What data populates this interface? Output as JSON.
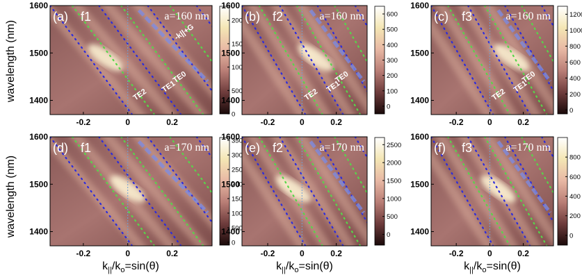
{
  "figure": {
    "ylabel": "wavelength (nm)",
    "xlabel": "k||/ko=sin(θ)",
    "xlabel_parts": {
      "k": "k",
      "sub1": "||",
      "slash": "/k",
      "sub2": "o",
      "rest": "=sin(θ)"
    }
  },
  "chart_data": [
    {
      "type": "heatmap",
      "panel": "(a)",
      "facet": "f1",
      "lattice": "a=160 nm",
      "xlim": [
        -0.35,
        0.38
      ],
      "ylim": [
        1370,
        1600
      ],
      "xticks": [
        "-0.2",
        "0",
        "0.2"
      ],
      "xtick_values": [
        -0.2,
        0,
        0.2
      ],
      "yticks": [
        "1600",
        "1500",
        "1400"
      ],
      "ytick_values": [
        1600,
        1500,
        1400
      ],
      "colorbar": {
        "range": [
          0,
          2300
        ],
        "ticks": [
          "2000",
          "1500",
          "1000",
          "500",
          "0"
        ],
        "tick_values": [
          2000,
          1500,
          1000,
          500,
          0
        ]
      },
      "mode_labels": [
        "TE0",
        "TE1",
        "TE2",
        "-k||+G"
      ],
      "peak_x": -0.1
    },
    {
      "type": "heatmap",
      "panel": "(b)",
      "facet": "f2",
      "lattice": "a=160 nm",
      "xlim": [
        -0.35,
        0.38
      ],
      "ylim": [
        1370,
        1600
      ],
      "xticks": [
        "-0.2",
        "0",
        "0.2"
      ],
      "xtick_values": [
        -0.2,
        0,
        0.2
      ],
      "yticks": [
        "1600",
        "1500",
        "1400"
      ],
      "ytick_values": [
        1600,
        1500,
        1400
      ],
      "colorbar": {
        "range": [
          -50,
          650
        ],
        "ticks": [
          "600",
          "500",
          "400",
          "300",
          "200",
          "100",
          "0"
        ],
        "tick_values": [
          600,
          500,
          400,
          300,
          200,
          100,
          0
        ]
      },
      "mode_labels": [
        "TE0",
        "TE1",
        "TE2"
      ],
      "peak_x": 0.08
    },
    {
      "type": "heatmap",
      "panel": "(c)",
      "facet": "f3",
      "lattice": "a=160 nm",
      "xlim": [
        -0.35,
        0.38
      ],
      "ylim": [
        1370,
        1600
      ],
      "xticks": [
        "-0.2",
        "0",
        "0.2"
      ],
      "xtick_values": [
        -0.2,
        0,
        0.2
      ],
      "yticks": [
        "1600",
        "1500",
        "1400"
      ],
      "ytick_values": [
        1600,
        1500,
        1400
      ],
      "colorbar": {
        "range": [
          -50,
          1300
        ],
        "ticks": [
          "1200",
          "1000",
          "800",
          "600",
          "400",
          "200",
          "0"
        ],
        "tick_values": [
          1200,
          1000,
          800,
          600,
          400,
          200,
          0
        ]
      },
      "mode_labels": [
        "TE0",
        "TE1",
        "TE2"
      ],
      "peak_x": 0.13
    },
    {
      "type": "heatmap",
      "panel": "(d)",
      "facet": "f1",
      "lattice": "a=170 nm",
      "xlim": [
        -0.35,
        0.38
      ],
      "ylim": [
        1370,
        1600
      ],
      "xticks": [
        "-0.2",
        "0",
        "0.2"
      ],
      "xtick_values": [
        -0.2,
        0,
        0.2
      ],
      "yticks": [
        "1600",
        "1500",
        "1400"
      ],
      "ytick_values": [
        1600,
        1500,
        1400
      ],
      "colorbar": {
        "range": [
          -100,
          3600
        ],
        "ticks": [
          "3500",
          "3000",
          "2500",
          "2000",
          "1500",
          "1000",
          "500",
          "0"
        ],
        "tick_values": [
          3500,
          3000,
          2500,
          2000,
          1500,
          1000,
          500,
          0
        ]
      },
      "mode_labels": [],
      "peak_x": 0.0
    },
    {
      "type": "heatmap",
      "panel": "(e)",
      "facet": "f2",
      "lattice": "a=170 nm",
      "xlim": [
        -0.35,
        0.38
      ],
      "ylim": [
        1370,
        1600
      ],
      "xticks": [
        "-0.2",
        "0",
        "0.2"
      ],
      "xtick_values": [
        -0.2,
        0,
        0.2
      ],
      "yticks": [
        "1600",
        "1500",
        "1400"
      ],
      "ytick_values": [
        1600,
        1500,
        1400
      ],
      "colorbar": {
        "range": [
          -300,
          2700
        ],
        "ticks": [
          "2500",
          "2000",
          "1500",
          "1000",
          "500",
          "0"
        ],
        "tick_values": [
          2500,
          2000,
          1500,
          1000,
          500,
          0
        ]
      },
      "mode_labels": [],
      "peak_x": -0.05
    },
    {
      "type": "heatmap",
      "panel": "(f)",
      "facet": "f3",
      "lattice": "a=170 nm",
      "xlim": [
        -0.35,
        0.38
      ],
      "ylim": [
        1370,
        1600
      ],
      "xticks": [
        "-0.2",
        "0",
        "0.2"
      ],
      "xtick_values": [
        -0.2,
        0,
        0.2
      ],
      "yticks": [
        "1600",
        "1500",
        "1400"
      ],
      "ytick_values": [
        1600,
        1500,
        1400
      ],
      "colorbar": {
        "range": [
          -100,
          1000
        ],
        "ticks": [
          "800",
          "600",
          "400",
          "200",
          "0"
        ],
        "tick_values": [
          800,
          600,
          400,
          200,
          0
        ]
      },
      "mode_labels": [],
      "peak_x": 0.05
    }
  ]
}
